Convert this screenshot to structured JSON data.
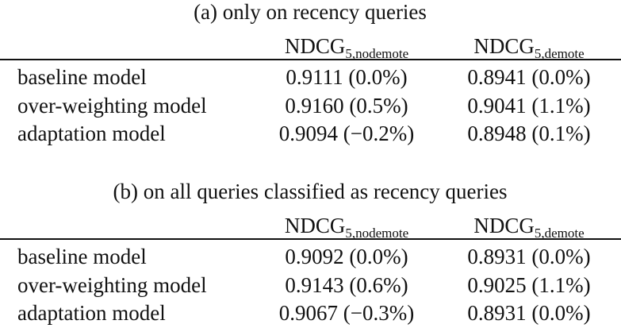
{
  "tables": [
    {
      "caption": "(a) only on recency queries",
      "headers": [
        {
          "main": "NDCG",
          "sub": "5,nodemote"
        },
        {
          "main": "NDCG",
          "sub": "5,demote"
        }
      ],
      "rows": [
        [
          "baseline model",
          "0.9111 (0.0%)",
          "0.8941 (0.0%)"
        ],
        [
          "over-weighting model",
          "0.9160 (0.5%)",
          "0.9041 (1.1%)"
        ],
        [
          "adaptation model",
          "0.9094 (−0.2%)",
          "0.8948 (0.1%)"
        ]
      ]
    },
    {
      "caption": "(b) on all queries classified as recency queries",
      "headers": [
        {
          "main": "NDCG",
          "sub": "5,nodemote"
        },
        {
          "main": "NDCG",
          "sub": "5,demote"
        }
      ],
      "rows": [
        [
          "baseline model",
          "0.9092 (0.0%)",
          "0.8931 (0.0%)"
        ],
        [
          "over-weighting model",
          "0.9143 (0.6%)",
          "0.9025 (1.1%)"
        ],
        [
          "adaptation model",
          "0.9067 (−0.3%)",
          "0.8931 (0.0%)"
        ]
      ]
    }
  ]
}
